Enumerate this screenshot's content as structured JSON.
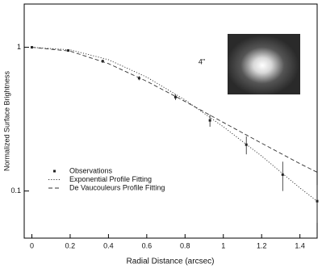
{
  "chart_data": {
    "type": "line",
    "xlabel": "Radial Distance (arcsec)",
    "ylabel": "Normalized Surface Brightness",
    "annotation": "4\"",
    "xlim": [
      -0.04,
      1.49
    ],
    "ylim": [
      0.047,
      2
    ],
    "ylog": true,
    "xticks": [
      0,
      0.2,
      0.4,
      0.6,
      0.8,
      1,
      1.2,
      1.4
    ],
    "yticks": [
      0.1,
      1
    ],
    "series": [
      {
        "name": "Observations",
        "style": "markers",
        "color": "#222222",
        "x": [
          0,
          0.19,
          0.37,
          0.56,
          0.75,
          0.93,
          1.12,
          1.31,
          1.49
        ],
        "values": [
          1,
          0.95,
          0.8,
          0.61,
          0.45,
          0.31,
          0.21,
          0.13,
          0.085
        ],
        "errors": [
          0.01,
          0.01,
          0.02,
          0.02,
          0.02,
          0.03,
          0.03,
          0.03,
          0.025
        ]
      },
      {
        "name": "Exponential Profile Fitting",
        "style": "dotted",
        "color": "#333333",
        "x": [
          0,
          0.2,
          0.4,
          0.6,
          0.8,
          1,
          1.2,
          1.4,
          1.49
        ],
        "values": [
          1,
          0.96,
          0.82,
          0.62,
          0.43,
          0.28,
          0.175,
          0.105,
          0.085
        ]
      },
      {
        "name": "De Vaucouleurs Profile Fitting",
        "style": "dashed",
        "color": "#333333",
        "x": [
          0,
          0.2,
          0.4,
          0.6,
          0.8,
          1,
          1.2,
          1.4,
          1.49
        ],
        "values": [
          1,
          0.94,
          0.77,
          0.58,
          0.42,
          0.3,
          0.215,
          0.155,
          0.135
        ]
      }
    ]
  }
}
